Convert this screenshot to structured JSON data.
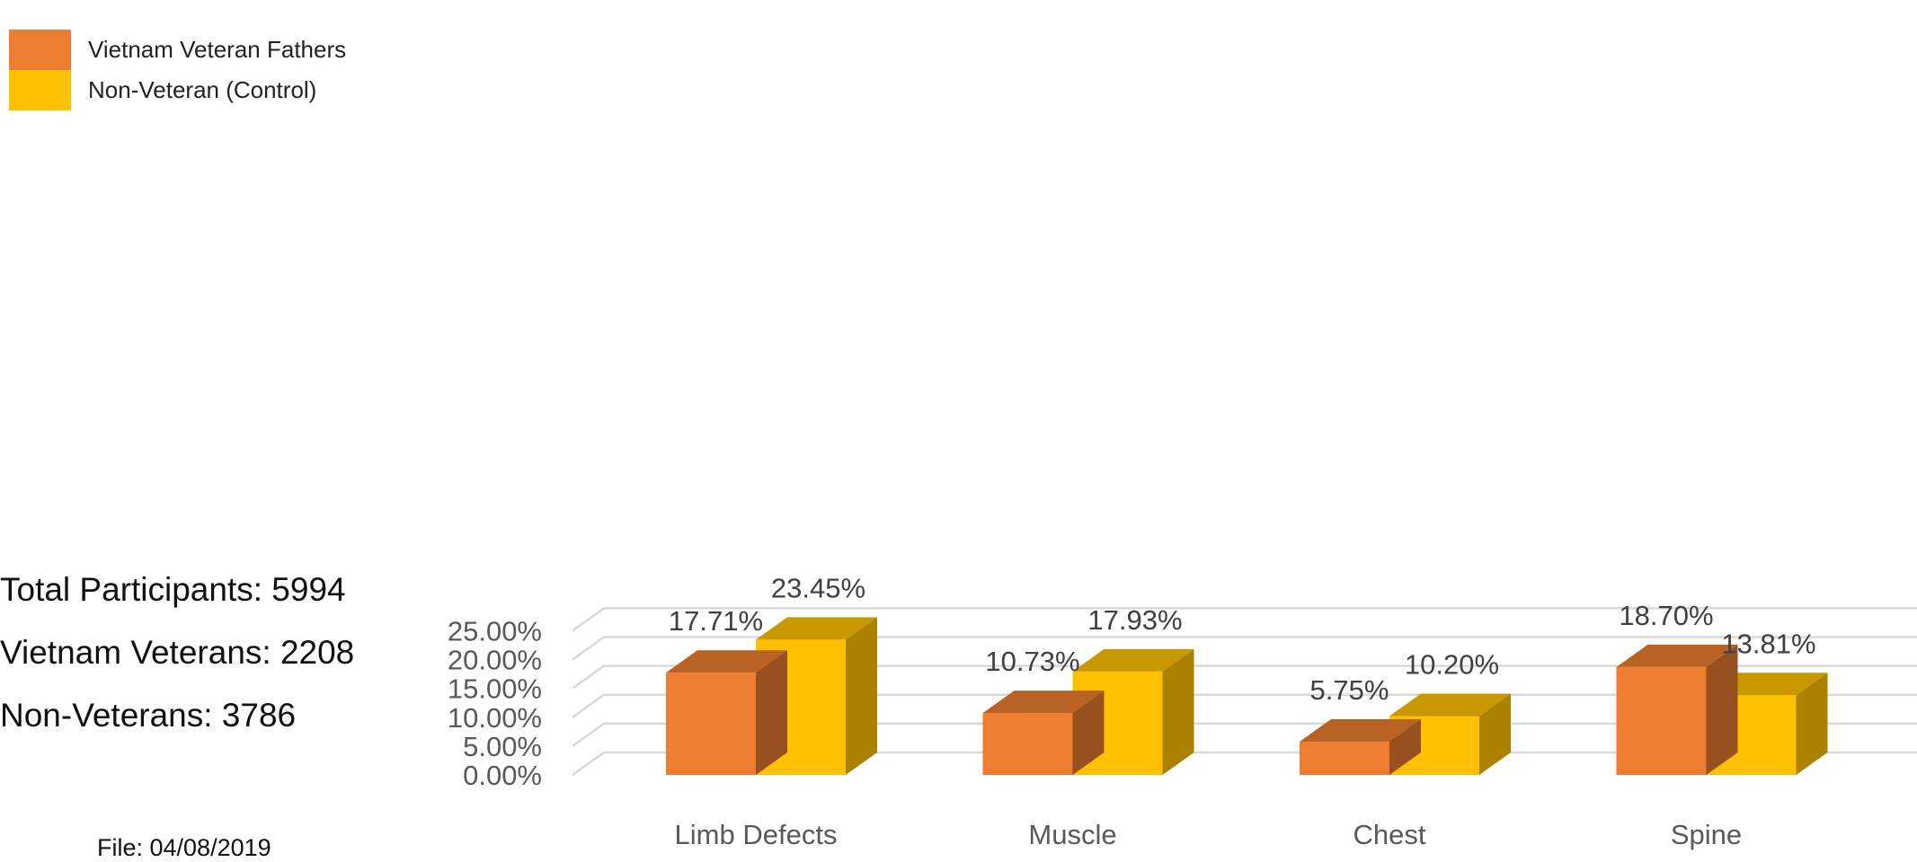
{
  "legend": {
    "items": [
      {
        "label": "Vietnam Veteran Fathers",
        "color": "#ED7D31"
      },
      {
        "label": "Non-Veteran (Control)",
        "color": "#FFC000"
      }
    ]
  },
  "notes": {
    "total": "Total Participants: 5994",
    "veterans": "Vietnam Veterans: 2208",
    "non_veterans": "Non-Veterans: 3786",
    "file": "File: 04/08/2019"
  },
  "chart_data": {
    "type": "bar",
    "style": "3d-clustered-column",
    "title": "",
    "xlabel": "",
    "ylabel": "",
    "ylim": [
      0,
      0.25
    ],
    "y_ticks": [
      0,
      0.05,
      0.1,
      0.15,
      0.2,
      0.25
    ],
    "y_tick_labels": [
      "0.00%",
      "5.00%",
      "10.00%",
      "15.00%",
      "20.00%",
      "25.00%"
    ],
    "grid": true,
    "legend_position": "top-left",
    "categories": [
      "Limb Defects",
      "Muscle",
      "Chest",
      "Spine"
    ],
    "series": [
      {
        "name": "Vietnam Veteran Fathers",
        "color": "#ED7D31",
        "values": [
          0.1771,
          0.1073,
          0.0575,
          0.187
        ],
        "labels": [
          "17.71%",
          "10.73%",
          "5.75%",
          "18.70%"
        ]
      },
      {
        "name": "Non-Veteran (Control)",
        "color": "#FFC000",
        "values": [
          0.2345,
          0.1793,
          0.102,
          0.1381
        ],
        "labels": [
          "23.45%",
          "17.93%",
          "10.20%",
          "13.81%"
        ]
      }
    ]
  }
}
